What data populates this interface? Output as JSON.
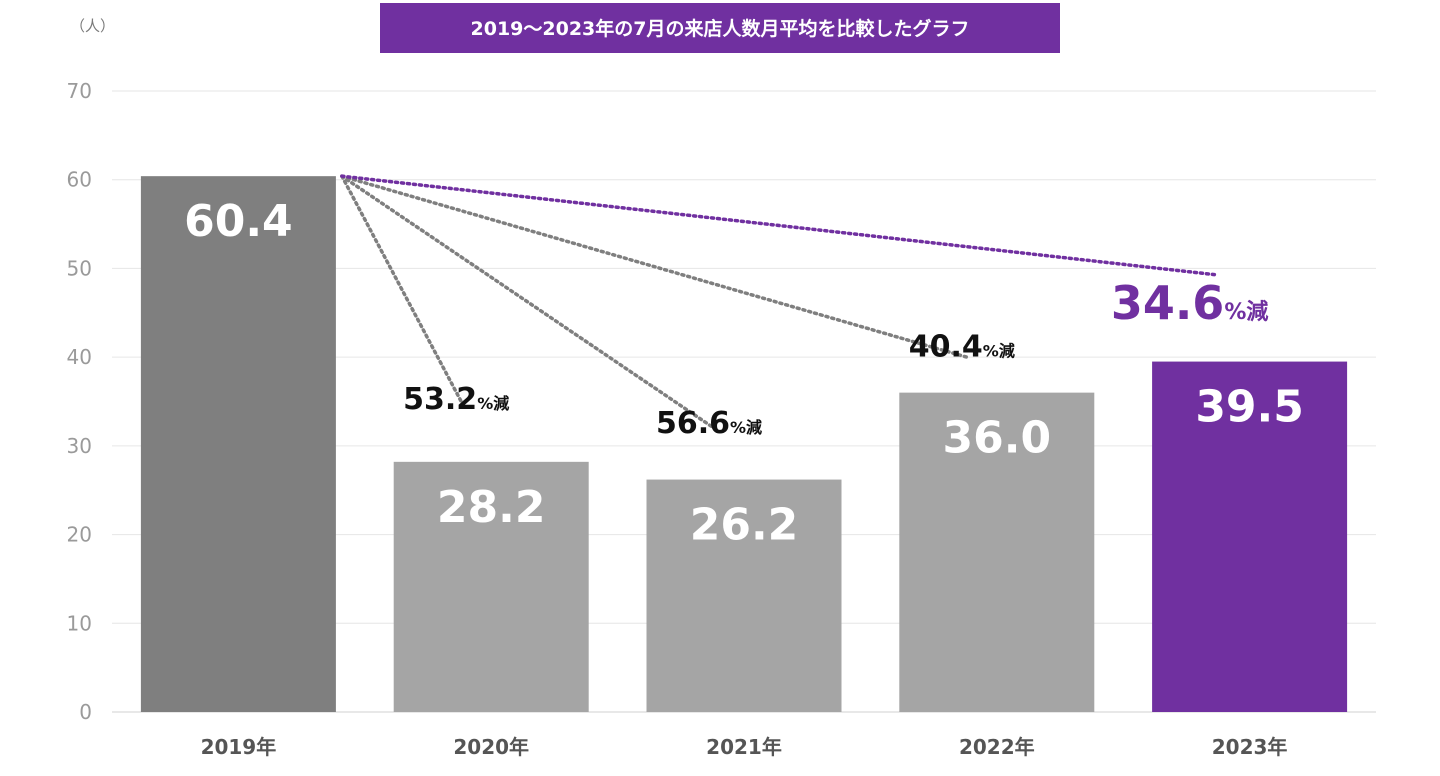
{
  "chart_data": {
    "type": "bar",
    "title": "2019〜2023年の7月の来店人数月平均を比較したグラフ",
    "unit_label": "（人）",
    "xlabel": "",
    "ylabel": "（人）",
    "ylim": [
      0,
      70
    ],
    "yticks": [
      0,
      10,
      20,
      30,
      40,
      50,
      60,
      70
    ],
    "grid": true,
    "categories": [
      "2019年",
      "2020年",
      "2021年",
      "2022年",
      "2023年"
    ],
    "values": [
      60.4,
      28.2,
      26.2,
      36.0,
      39.5
    ],
    "value_labels": [
      "60.4",
      "28.2",
      "26.2",
      "36.0",
      "39.5"
    ],
    "colors": [
      "#7f7f7f",
      "#a5a5a5",
      "#a5a5a5",
      "#a5a5a5",
      "#7030a0"
    ],
    "title_bg_color": "#7030a0",
    "annotations": [
      {
        "category_index": 1,
        "percent": "53.2",
        "suffix": "%減",
        "color": "#111111",
        "line_color": "#7f7f7f",
        "line_end_value": 35,
        "label_value": 33.5,
        "emphasis": false
      },
      {
        "category_index": 2,
        "percent": "56.6",
        "suffix": "%減",
        "color": "#111111",
        "line_color": "#7f7f7f",
        "line_end_value": 32,
        "label_value": 30.8,
        "emphasis": false
      },
      {
        "category_index": 3,
        "percent": "40.4",
        "suffix": "%減",
        "color": "#111111",
        "line_color": "#7f7f7f",
        "line_end_value": 40,
        "label_value": 39.4,
        "emphasis": false
      },
      {
        "category_index": 4,
        "percent": "34.6",
        "suffix": "%減",
        "color": "#7030a0",
        "line_color": "#7030a0",
        "line_end_value": 49.3,
        "label_value": 43.6,
        "emphasis": true
      }
    ]
  }
}
